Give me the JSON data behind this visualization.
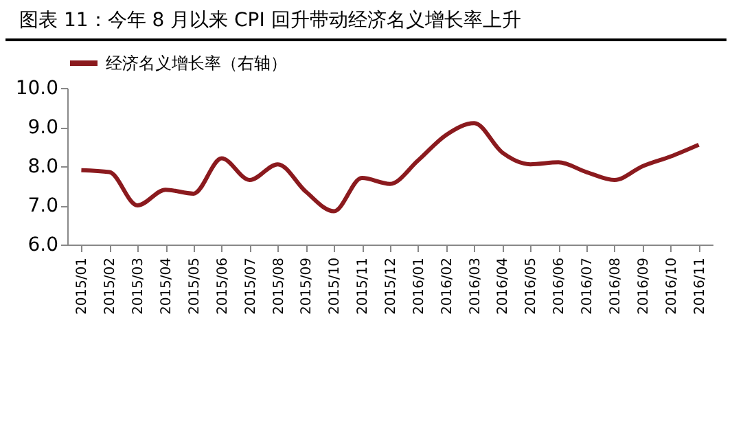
{
  "chart_data": {
    "type": "line",
    "title": "图表 11：今年 8 月以来 CPI 回升带动经济名义增长率上升",
    "categories": [
      "2015/01",
      "2015/02",
      "2015/03",
      "2015/04",
      "2015/05",
      "2015/06",
      "2015/07",
      "2015/08",
      "2015/09",
      "2015/10",
      "2015/11",
      "2015/12",
      "2016/01",
      "2016/02",
      "2016/03",
      "2016/04",
      "2016/05",
      "2016/06",
      "2016/07",
      "2016/08",
      "2016/09",
      "2016/10",
      "2016/11"
    ],
    "series": [
      {
        "name": "经济名义增长率（右轴）",
        "color": "#8b1a1e",
        "values": [
          7.9,
          7.85,
          7.0,
          7.4,
          7.3,
          8.2,
          7.65,
          8.05,
          7.35,
          6.85,
          7.7,
          7.55,
          8.15,
          8.8,
          9.1,
          8.35,
          8.05,
          8.1,
          7.85,
          7.65,
          8.0,
          8.25,
          8.55
        ]
      }
    ],
    "ylim": [
      6,
      10
    ],
    "yticks": [
      {
        "value": 6,
        "label": "6.0"
      },
      {
        "value": 7,
        "label": "7.0"
      },
      {
        "value": 8,
        "label": "8.0"
      },
      {
        "value": 9,
        "label": "9.0"
      },
      {
        "value": 10,
        "label": "10.0"
      }
    ],
    "legend": "top",
    "grid": false,
    "marker": "none",
    "line_style": "solid"
  }
}
